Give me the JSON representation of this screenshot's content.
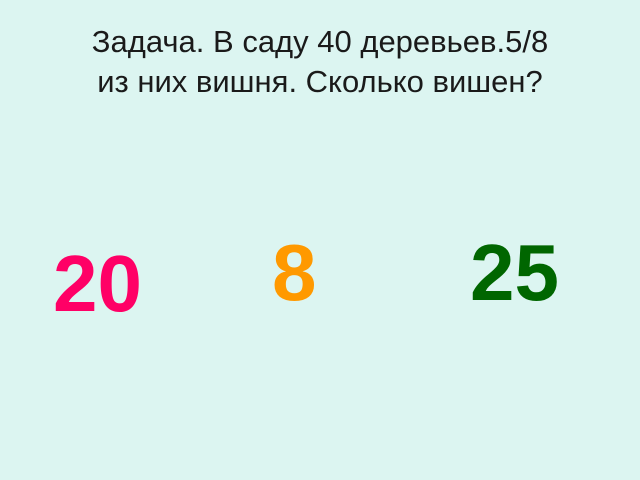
{
  "slide": {
    "title_line1": "Задача. В саду 40 деревьев.5/8",
    "title_line2": "из них вишня. Сколько вишен?",
    "answers": [
      {
        "label": "20",
        "color": "#ff0066"
      },
      {
        "label": "8",
        "color": "#ff9900"
      },
      {
        "label": "25",
        "color": "#006600"
      }
    ]
  }
}
